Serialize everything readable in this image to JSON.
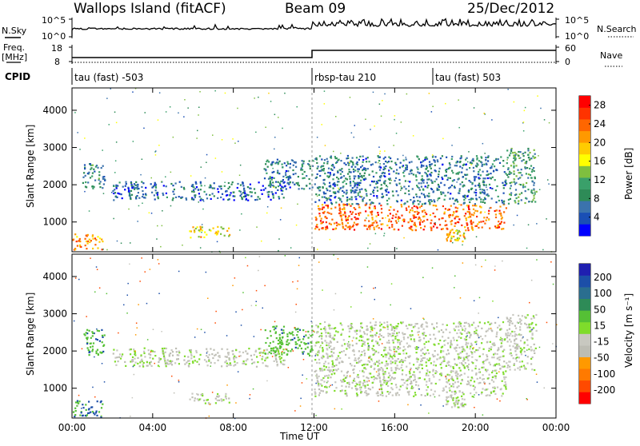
{
  "header": {
    "station": "Wallops Island (fitACF)",
    "beam": "Beam 09",
    "date": "25/Dec/2012"
  },
  "top_panels": {
    "nsky_label": "N.Sky",
    "nsky_ticks": [
      "10^5",
      "10^0"
    ],
    "nsearch_label": "N.Search",
    "nsearch_ticks": [
      "10^5",
      "10^0"
    ],
    "freq_label": "Freq.",
    "freq_unit": "[MHz]",
    "freq_ticks": [
      "18",
      "8"
    ],
    "nave_label": "Nave",
    "nave_ticks": [
      "60",
      "0"
    ],
    "cpid_label": "CPID",
    "cpid_segments": [
      {
        "label": "tau (fast) -503",
        "start_hour": 0
      },
      {
        "label": "rbsp-tau 210",
        "start_hour": 12
      },
      {
        "label": "tau (fast) 503",
        "start_hour": 18
      }
    ]
  },
  "x_axis": {
    "label": "Time UT",
    "ticks": [
      "00:00",
      "04:00",
      "08:00",
      "12:00",
      "16:00",
      "20:00",
      "00:00"
    ]
  },
  "colors": {
    "power": [
      "#0000ff",
      "#1a4fb5",
      "#3b73ad",
      "#2e8b57",
      "#3aa06a",
      "#7fbf3f",
      "#ffff00",
      "#ffcc00",
      "#ff9900",
      "#ff6600",
      "#ff3300",
      "#ff0000"
    ],
    "velocity": [
      "#1f1fb0",
      "#1c4fa8",
      "#2a6e8f",
      "#2e8b57",
      "#55c035",
      "#7fdc2b",
      "#c8c8c0",
      "#bdbdb4",
      "#ff9900",
      "#ff7a00",
      "#ff4a00",
      "#ff0000"
    ]
  },
  "chart_data": [
    {
      "type": "heatmap",
      "name": "power",
      "ylabel": "Slant Range [km]",
      "yticks": [
        "1000",
        "2000",
        "3000",
        "4000"
      ],
      "ylim": [
        200,
        4600
      ],
      "xlim": [
        0,
        24
      ],
      "colorbar_label": "Power [dB]",
      "colorbar_ticks": [
        "4",
        "8",
        "12",
        "16",
        "20",
        "24",
        "28"
      ],
      "colorbar_range": [
        0,
        30
      ],
      "regions": [
        {
          "t0": 0.0,
          "t1": 1.5,
          "r0": 250,
          "r1": 700,
          "level": 22
        },
        {
          "t0": 0.5,
          "t1": 1.6,
          "r0": 1900,
          "r1": 2600,
          "level": 8
        },
        {
          "t0": 2.0,
          "t1": 10.5,
          "r0": 1600,
          "r1": 2100,
          "level": 6
        },
        {
          "t0": 5.8,
          "t1": 7.8,
          "r0": 600,
          "r1": 900,
          "level": 18
        },
        {
          "t0": 9.5,
          "t1": 11.9,
          "r0": 1900,
          "r1": 2700,
          "level": 7
        },
        {
          "t0": 12.0,
          "t1": 21.5,
          "r0": 800,
          "r1": 1500,
          "level": 24
        },
        {
          "t0": 12.0,
          "t1": 21.5,
          "r0": 1500,
          "r1": 2800,
          "level": 7
        },
        {
          "t0": 18.5,
          "t1": 19.5,
          "r0": 500,
          "r1": 800,
          "level": 18
        },
        {
          "t0": 21.5,
          "t1": 23.0,
          "r0": 1500,
          "r1": 3000,
          "level": 10
        }
      ]
    },
    {
      "type": "heatmap",
      "name": "velocity",
      "ylabel": "Slant Range [km]",
      "yticks": [
        "1000",
        "2000",
        "3000",
        "4000"
      ],
      "ylim": [
        200,
        4600
      ],
      "xlim": [
        0,
        24
      ],
      "colorbar_label": "Velocity [m s⁻¹]",
      "colorbar_ticks": [
        "200",
        "100",
        "50",
        "15",
        "-15",
        "-50",
        "-100",
        "-200"
      ],
      "regions": [
        {
          "t0": 0.0,
          "t1": 1.5,
          "r0": 250,
          "r1": 700,
          "velocity": 80
        },
        {
          "t0": 0.5,
          "t1": 1.6,
          "r0": 1900,
          "r1": 2600,
          "velocity": 60
        },
        {
          "t0": 2.0,
          "t1": 10.5,
          "r0": 1600,
          "r1": 2100,
          "velocity": 0
        },
        {
          "t0": 5.8,
          "t1": 7.8,
          "r0": 600,
          "r1": 900,
          "velocity": 0
        },
        {
          "t0": 9.5,
          "t1": 11.9,
          "r0": 1900,
          "r1": 2700,
          "velocity": 60
        },
        {
          "t0": 12.0,
          "t1": 21.5,
          "r0": 800,
          "r1": 1500,
          "velocity": 0
        },
        {
          "t0": 12.0,
          "t1": 21.5,
          "r0": 1500,
          "r1": 2800,
          "velocity": 0
        },
        {
          "t0": 18.5,
          "t1": 19.5,
          "r0": 500,
          "r1": 800,
          "velocity": 0
        },
        {
          "t0": 21.5,
          "t1": 23.0,
          "r0": 1500,
          "r1": 3000,
          "velocity": 0
        }
      ]
    }
  ]
}
